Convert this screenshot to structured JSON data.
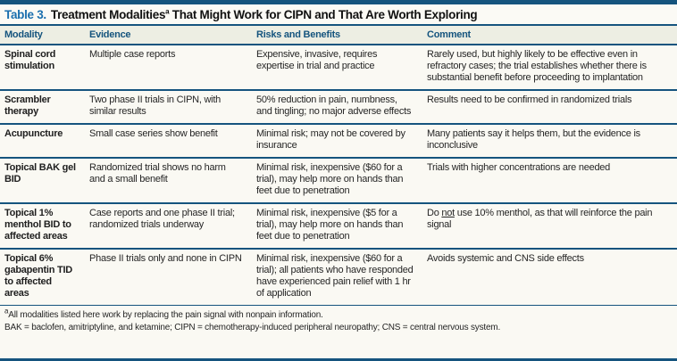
{
  "title": {
    "label": "Table 3.",
    "before_sup": "Treatment Modalities",
    "sup": "a",
    "after_sup": " That Might Work for CIPN and That Are Worth Exploring"
  },
  "table": {
    "columns": [
      "Modality",
      "Evidence",
      "Risks and Benefits",
      "Comment"
    ],
    "rows": [
      {
        "modality": "Spinal cord stimulation",
        "evidence": "Multiple case reports",
        "risks": "Expensive, invasive, requires expertise in trial and practice",
        "comment": "Rarely used, but highly likely to be effective even in refractory cases; the trial establishes whether there is substantial benefit before proceeding to implantation"
      },
      {
        "modality": "Scrambler therapy",
        "evidence": "Two phase II trials in CIPN, with similar results",
        "risks": "50% reduction in pain, numb­ness, and tingling; no major adverse effects",
        "comment": "Results need to be confirmed in randomized trials"
      },
      {
        "modality": "Acupuncture",
        "evidence": "Small case series show benefit",
        "risks": "Minimal risk; may not be covered by insurance",
        "comment": "Many patients say it helps them, but the evidence is inconclusive"
      },
      {
        "modality": "Topical BAK gel BID",
        "evidence": "Randomized trial shows no harm and a small benefit",
        "risks": "Minimal risk, inexpensive ($60 for a trial), may help more on hands than feet due to penetration",
        "comment": "Trials with higher concentrations are needed"
      },
      {
        "modality": "Topical 1% menthol BID to affected areas",
        "evidence": "Case reports and one phase II trial; randomized trials underway",
        "risks": "Minimal risk, inexpensive ($5 for a trial), may help more on hands than feet due to penetration",
        "comment": [
          {
            "text": "Do "
          },
          {
            "text": "not",
            "underline": true
          },
          {
            "text": " use 10% menthol, as that will reinforce the pain signal"
          }
        ]
      },
      {
        "modality": "Topical 6% gabapentin TID to affected areas",
        "evidence": "Phase II trials only and none in CIPN",
        "risks": "Minimal risk, inexpensive ($60 for a trial); all patients who have responded have experienced pain relief with 1 hr of application",
        "comment": "Avoids systemic and CNS side effects"
      }
    ]
  },
  "footnotes": [
    {
      "sup": "a",
      "text": "All modalities listed here work by replacing the pain signal with nonpain information."
    },
    {
      "sup": "",
      "text": "BAK = baclofen, amitriptyline, and ketamine; CIPN = chemotherapy-induced peripheral neuropathy; CNS = central nervous system."
    }
  ],
  "colors": {
    "rule_navy": "#15547e",
    "title_blue": "#1a6fae",
    "body_bg": "#f8f7f1",
    "header_bg": "#edeee3",
    "text": "#262626"
  }
}
